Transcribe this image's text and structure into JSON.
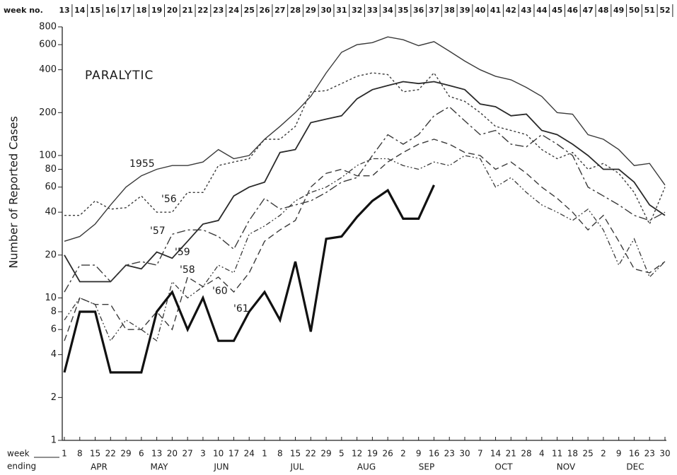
{
  "chart_data": {
    "type": "line",
    "annotation": "PARALYTIC",
    "ylabel": "Number of Reported Cases",
    "x2label": "week no.",
    "xlabel_lines": [
      "week",
      "ending"
    ],
    "categories": [
      1,
      8,
      15,
      22,
      29,
      6,
      13,
      20,
      27,
      3,
      10,
      17,
      24,
      1,
      8,
      15,
      22,
      29,
      5,
      12,
      19,
      26,
      2,
      9,
      16,
      23,
      30,
      7,
      14,
      21,
      28,
      4,
      11,
      18,
      25,
      2,
      9,
      16,
      23,
      30
    ],
    "week_numbers": [
      13,
      14,
      15,
      16,
      17,
      18,
      19,
      20,
      21,
      22,
      23,
      24,
      25,
      26,
      27,
      28,
      29,
      30,
      31,
      32,
      33,
      34,
      35,
      36,
      37,
      38,
      39,
      40,
      41,
      42,
      43,
      44,
      45,
      46,
      47,
      48,
      49,
      50,
      51,
      52
    ],
    "months": [
      "APR",
      "MAY",
      "JUN",
      "JUL",
      "AUG",
      "SEP",
      "OCT",
      "NOV",
      "DEC"
    ],
    "log_scale": true,
    "grid": false,
    "ylim": [
      1,
      800
    ],
    "yticks": [
      1,
      2,
      4,
      6,
      8,
      10,
      20,
      40,
      60,
      80,
      100,
      200,
      400,
      600,
      800
    ],
    "series": [
      {
        "name": "1955",
        "color": "#3a3a3a",
        "line_style": "solid",
        "line_width": 1.4,
        "values": [
          25,
          27,
          33,
          45,
          60,
          72,
          80,
          85,
          85,
          90,
          110,
          95,
          100,
          130,
          160,
          200,
          260,
          380,
          530,
          600,
          620,
          680,
          650,
          590,
          630,
          540,
          460,
          400,
          360,
          340,
          300,
          260,
          200,
          195,
          140,
          130,
          110,
          85,
          88,
          62
        ]
      },
      {
        "name": "'56",
        "color": "#3a3a3a",
        "line_style": "dotted",
        "line_width": 1.4,
        "values": [
          38,
          38,
          48,
          42,
          43,
          52,
          40,
          40,
          55,
          55,
          85,
          90,
          95,
          130,
          130,
          160,
          280,
          285,
          320,
          360,
          380,
          370,
          280,
          290,
          380,
          260,
          240,
          200,
          160,
          150,
          140,
          110,
          95,
          105,
          80,
          88,
          75,
          55,
          33,
          60
        ]
      },
      {
        "name": "'57",
        "color": "#2a2a2a",
        "line_style": "solid",
        "line_width": 1.8,
        "values": [
          20,
          13,
          13,
          13,
          17,
          16,
          21,
          19,
          25,
          33,
          35,
          52,
          60,
          65,
          105,
          110,
          170,
          180,
          190,
          250,
          290,
          310,
          330,
          320,
          330,
          310,
          290,
          230,
          220,
          190,
          195,
          150,
          140,
          120,
          100,
          80,
          80,
          65,
          45,
          38
        ]
      },
      {
        "name": "'59",
        "color": "#3a3a3a",
        "line_style": "dashdot",
        "line_width": 1.4,
        "values": [
          11,
          17,
          17,
          13,
          17,
          18,
          17,
          28,
          30,
          30,
          27,
          22,
          35,
          50,
          42,
          45,
          48,
          55,
          65,
          70,
          100,
          140,
          120,
          140,
          190,
          220,
          175,
          140,
          150,
          120,
          115,
          140,
          120,
          100,
          60,
          52,
          45,
          38,
          35,
          40
        ]
      },
      {
        "name": "'58",
        "color": "#3a3a3a",
        "line_style": "dashed",
        "line_width": 1.4,
        "values": [
          5,
          10,
          9,
          9,
          6,
          6,
          8,
          6,
          14,
          12,
          14,
          11,
          15,
          25,
          30,
          35,
          60,
          75,
          80,
          72,
          72,
          90,
          105,
          120,
          130,
          120,
          105,
          100,
          80,
          90,
          75,
          60,
          50,
          40,
          30,
          38,
          25,
          16,
          15,
          18
        ]
      },
      {
        "name": "'60",
        "color": "#3a3a3a",
        "line_style": "dashdotdot",
        "line_width": 1.3,
        "values": [
          7,
          10,
          9,
          5,
          7,
          6,
          5,
          13,
          10,
          12,
          17,
          15,
          28,
          32,
          38,
          48,
          55,
          60,
          70,
          85,
          95,
          95,
          85,
          80,
          90,
          85,
          100,
          95,
          60,
          70,
          55,
          45,
          40,
          35,
          42,
          30,
          17,
          26,
          14,
          18
        ]
      },
      {
        "name": "'61",
        "color": "#111111",
        "line_style": "solid",
        "line_width": 3.2,
        "values": [
          3,
          8,
          8,
          3,
          3,
          3,
          8,
          11,
          6,
          10,
          5,
          5,
          8,
          11,
          7,
          18,
          5.8,
          26,
          27,
          37,
          48,
          57,
          36,
          36,
          62,
          null,
          null,
          null,
          null,
          null,
          null,
          null,
          null,
          null,
          null,
          null,
          null,
          null,
          null,
          null
        ]
      }
    ]
  }
}
